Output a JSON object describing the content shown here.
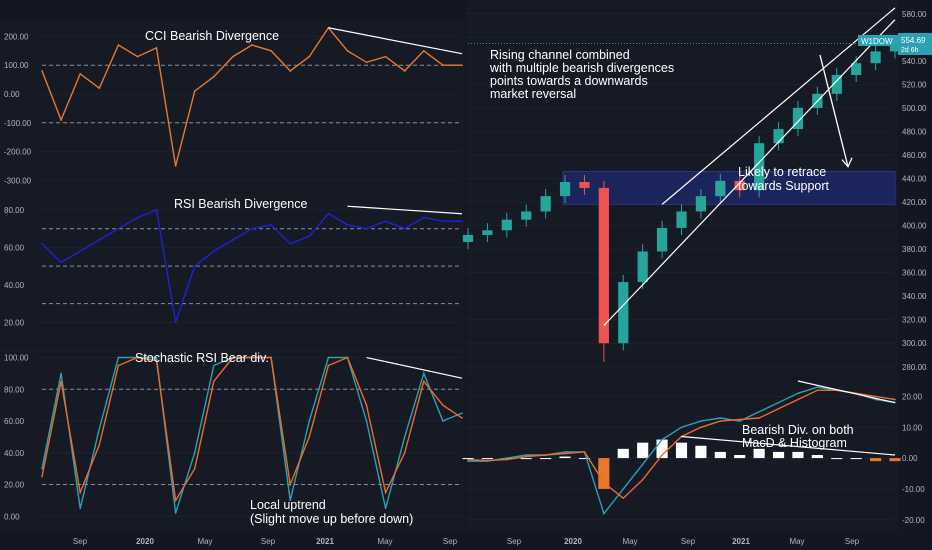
{
  "colors": {
    "bg": "#131722",
    "panel": "#161a25",
    "grid": "#1e222d",
    "axis_text": "#b2b5be",
    "cci": "#e9782c",
    "rsi": "#2121d8",
    "stoch_k": "#2aa1b5",
    "stoch_d": "#ef6a2a",
    "macd": "#2aa1b5",
    "signal": "#ef6a2a",
    "hist_pos": "#ffffff",
    "hist_neg": "#e9782c",
    "candle_up": "#26a69a",
    "candle_down": "#ef5350",
    "support_zone": "#1e2a6e",
    "annotation": "#ffffff",
    "price_tag": "#2aa1b5"
  },
  "x_axis": {
    "left_ticks": [
      "Sep",
      "2020",
      "May",
      "Sep",
      "2021",
      "May",
      "Sep"
    ],
    "right_ticks": [
      "Sep",
      "2020",
      "May",
      "Sep",
      "2021",
      "May",
      "Sep"
    ]
  },
  "price_tag": {
    "symbol": "W1DOW",
    "value": "554.69",
    "countdown": "2d 6h"
  },
  "chart_data": [
    {
      "type": "line",
      "id": "cci",
      "title": "CCI Bearish Divergence",
      "y_ticks": [
        "200.00",
        "100.00",
        "0.00",
        "-100.00",
        "-200.00",
        "-300.00"
      ],
      "ylim": [
        -330,
        250
      ],
      "levels": [
        100,
        -100
      ],
      "x": [
        "Aug 2019",
        "Sep 2019",
        "Oct 2019",
        "Nov 2019",
        "Dec 2019",
        "Jan 2020",
        "Feb 2020",
        "Mar 2020",
        "Apr 2020",
        "May 2020",
        "Jun 2020",
        "Jul 2020",
        "Aug 2020",
        "Sep 2020",
        "Oct 2020",
        "Nov 2020",
        "Dec 2020",
        "Jan 2021",
        "Feb 2021",
        "Mar 2021",
        "Apr 2021",
        "May 2021",
        "Jun 2021"
      ],
      "series": [
        {
          "values": [
            80,
            -90,
            70,
            20,
            170,
            130,
            160,
            -250,
            10,
            60,
            130,
            170,
            150,
            80,
            130,
            230,
            150,
            110,
            130,
            80,
            150,
            100,
            100
          ]
        }
      ],
      "divergence_line": {
        "from": [
          "Nov 2020",
          230
        ],
        "to": [
          "Jun 2021",
          140
        ]
      }
    },
    {
      "type": "line",
      "id": "rsi",
      "title": "RSI Bearish Divergence",
      "y_ticks": [
        "80.00",
        "60.00",
        "40.00",
        "20.00"
      ],
      "ylim": [
        10,
        88
      ],
      "levels": [
        70,
        50,
        30
      ],
      "x": [
        "Aug 2019",
        "Sep 2019",
        "Oct 2019",
        "Nov 2019",
        "Dec 2019",
        "Jan 2020",
        "Feb 2020",
        "Mar 2020",
        "Apr 2020",
        "May 2020",
        "Jun 2020",
        "Jul 2020",
        "Aug 2020",
        "Sep 2020",
        "Oct 2020",
        "Nov 2020",
        "Dec 2020",
        "Jan 2021",
        "Feb 2021",
        "Mar 2021",
        "Apr 2021",
        "May 2021",
        "Jun 2021"
      ],
      "series": [
        {
          "values": [
            62,
            52,
            58,
            64,
            70,
            76,
            80,
            20,
            50,
            58,
            64,
            70,
            72,
            62,
            66,
            78,
            72,
            70,
            74,
            70,
            76,
            74,
            74
          ]
        }
      ],
      "divergence_line": {
        "from": [
          "Dec 2020",
          82
        ],
        "to": [
          "Jun 2021",
          78
        ]
      }
    },
    {
      "type": "line",
      "id": "stoch",
      "title": "Stochastic RSI Bear div.",
      "y_ticks": [
        "100.00",
        "80.00",
        "60.00",
        "40.00",
        "20.00",
        "0.00"
      ],
      "ylim": [
        -8,
        106
      ],
      "levels": [
        80,
        20
      ],
      "x": [
        "Aug 2019",
        "Sep 2019",
        "Oct 2019",
        "Nov 2019",
        "Dec 2019",
        "Jan 2020",
        "Feb 2020",
        "Mar 2020",
        "Apr 2020",
        "May 2020",
        "Jun 2020",
        "Jul 2020",
        "Aug 2020",
        "Sep 2020",
        "Oct 2020",
        "Nov 2020",
        "Dec 2020",
        "Jan 2021",
        "Feb 2021",
        "Mar 2021",
        "Apr 2021",
        "May 2021",
        "Jun 2021"
      ],
      "series": [
        {
          "values": [
            30,
            90,
            5,
            55,
            100,
            100,
            100,
            2,
            40,
            95,
            100,
            100,
            100,
            10,
            60,
            100,
            100,
            60,
            5,
            50,
            90,
            60,
            65
          ]
        },
        {
          "values": [
            25,
            85,
            15,
            45,
            95,
            100,
            98,
            10,
            30,
            85,
            100,
            100,
            100,
            20,
            50,
            95,
            100,
            70,
            15,
            40,
            85,
            70,
            62
          ]
        }
      ],
      "divergence_line": {
        "from": [
          "Jan 2021",
          100
        ],
        "to": [
          "Jun 2021",
          87
        ]
      },
      "annotation": [
        "Local uptrend",
        "(Slight move up before down)"
      ]
    },
    {
      "type": "candlestick",
      "id": "price",
      "y_ticks": [
        "580.00",
        "560.00",
        "540.00",
        "520.00",
        "500.00",
        "480.00",
        "460.00",
        "440.00",
        "420.00",
        "400.00",
        "380.00",
        "360.00",
        "340.00",
        "320.00",
        "300.00",
        "280.00"
      ],
      "ylim": [
        273,
        590
      ],
      "support_zone": [
        418,
        446
      ],
      "current_price": 554.69,
      "x": [
        "Aug 2019",
        "Sep 2019",
        "Oct 2019",
        "Nov 2019",
        "Dec 2019",
        "Jan 2020",
        "Feb 2020",
        "Mar 2020",
        "Apr 2020",
        "May 2020",
        "Jun 2020",
        "Jul 2020",
        "Aug 2020",
        "Sep 2020",
        "Oct 2020",
        "Nov 2020",
        "Dec 2020",
        "Jan 2021",
        "Feb 2021",
        "Mar 2021",
        "Apr 2021",
        "May 2021",
        "Jun 2021"
      ],
      "close": [
        392,
        396,
        405,
        412,
        425,
        437,
        432,
        300,
        352,
        378,
        398,
        412,
        425,
        438,
        430,
        470,
        482,
        500,
        512,
        528,
        538,
        548,
        555
      ],
      "channel_upper": {
        "from": [
          "Jun 2020",
          418
        ],
        "to": [
          "Jun 2021",
          585
        ]
      },
      "channel_lower": {
        "from": [
          "Mar 2020",
          315
        ],
        "to": [
          "Jul 2021",
          575
        ]
      },
      "annotations": [
        [
          "Rising channel combined",
          "with multiple bearish divergences",
          "points towards a downwards",
          "market reversal"
        ],
        [
          "Likely to retrace",
          "towards Support"
        ]
      ]
    },
    {
      "type": "line",
      "id": "macd",
      "y_ticks": [
        "20.00",
        "10.00",
        "0.00",
        "-10.00",
        "-20.00"
      ],
      "ylim": [
        -23,
        25
      ],
      "x": [
        "Aug 2019",
        "Sep 2019",
        "Oct 2019",
        "Nov 2019",
        "Dec 2019",
        "Jan 2020",
        "Feb 2020",
        "Mar 2020",
        "Apr 2020",
        "May 2020",
        "Jun 2020",
        "Jul 2020",
        "Aug 2020",
        "Sep 2020",
        "Oct 2020",
        "Nov 2020",
        "Dec 2020",
        "Jan 2021",
        "Feb 2021",
        "Mar 2021",
        "Apr 2021",
        "May 2021",
        "Jun 2021"
      ],
      "series": [
        {
          "name": "MACD",
          "values": [
            -1,
            -1,
            0,
            1,
            1,
            2,
            2,
            -18,
            -10,
            -2,
            6,
            10,
            12,
            13,
            12,
            15,
            18,
            21,
            23,
            22,
            21,
            19,
            18
          ]
        },
        {
          "name": "Signal",
          "values": [
            -0.5,
            -0.8,
            -0.5,
            0.5,
            1,
            1.5,
            2,
            -8,
            -13,
            -7,
            1,
            7,
            10,
            12,
            12.5,
            13,
            16,
            19,
            22,
            22,
            21,
            20,
            19
          ]
        }
      ],
      "histogram": [
        0,
        0,
        0,
        0,
        0,
        0.5,
        0,
        -10,
        3,
        5,
        6,
        5,
        4,
        2,
        1,
        3,
        2,
        2,
        1,
        0,
        0,
        -1,
        -1
      ],
      "divergence_lines": [
        {
          "from": [
            "Jan 2021",
            25
          ],
          "to": [
            "Jun 2021",
            18
          ]
        },
        {
          "from": [
            "Jul 2020",
            7
          ],
          "to": [
            "Jun 2021",
            1
          ]
        }
      ],
      "annotation": [
        "Bearish Div. on both",
        "MacD & Histogram"
      ]
    }
  ]
}
